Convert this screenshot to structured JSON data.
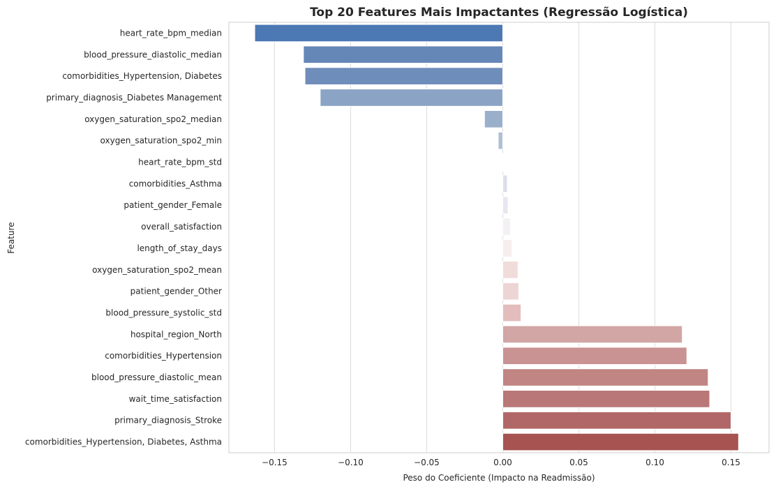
{
  "chart_data": {
    "type": "bar",
    "orientation": "horizontal",
    "title": "Top 20 Features Mais Impactantes (Regressão Logística)",
    "xlabel": "Peso do Coeficiente (Impacto na Readmissão)",
    "ylabel": "Feature",
    "xlim": [
      -0.18,
      0.175
    ],
    "xticks": [
      -0.15,
      -0.1,
      -0.05,
      0.0,
      0.05,
      0.1,
      0.15
    ],
    "xtick_labels": [
      "−0.15",
      "−0.10",
      "−0.05",
      "0.00",
      "0.05",
      "0.10",
      "0.15"
    ],
    "grid": "vertical",
    "categories": [
      "heart_rate_bpm_median",
      "blood_pressure_diastolic_median",
      "comorbidities_Hypertension, Diabetes",
      "primary_diagnosis_Diabetes Management",
      "oxygen_saturation_spo2_median",
      "oxygen_saturation_spo2_min",
      "heart_rate_bpm_std",
      "comorbidities_Asthma",
      "patient_gender_Female",
      "overall_satisfaction",
      "length_of_stay_days",
      "oxygen_saturation_spo2_mean",
      "patient_gender_Other",
      "blood_pressure_systolic_std",
      "hospital_region_North",
      "comorbidities_Hypertension",
      "blood_pressure_diastolic_mean",
      "wait_time_satisfaction",
      "primary_diagnosis_Stroke",
      "comorbidities_Hypertension, Diabetes, Asthma"
    ],
    "values": [
      -0.163,
      -0.131,
      -0.13,
      -0.12,
      -0.012,
      -0.003,
      0.0005,
      0.003,
      0.0035,
      0.005,
      0.006,
      0.01,
      0.0105,
      0.012,
      0.118,
      0.121,
      0.135,
      0.136,
      0.15,
      0.155
    ],
    "colors": [
      "#4c78b3",
      "#6587b7",
      "#6f8dbb",
      "#8ba3c5",
      "#9aafca",
      "#b1bfd5",
      "#f9f9fb",
      "#dcdfea",
      "#e7e7f0",
      "#f3f1f4",
      "#f6eeee",
      "#efdcdb",
      "#ecd5d4",
      "#e2bdbc",
      "#d2a6a5",
      "#c99393",
      "#c18584",
      "#b97777",
      "#b16767",
      "#a65352"
    ]
  }
}
